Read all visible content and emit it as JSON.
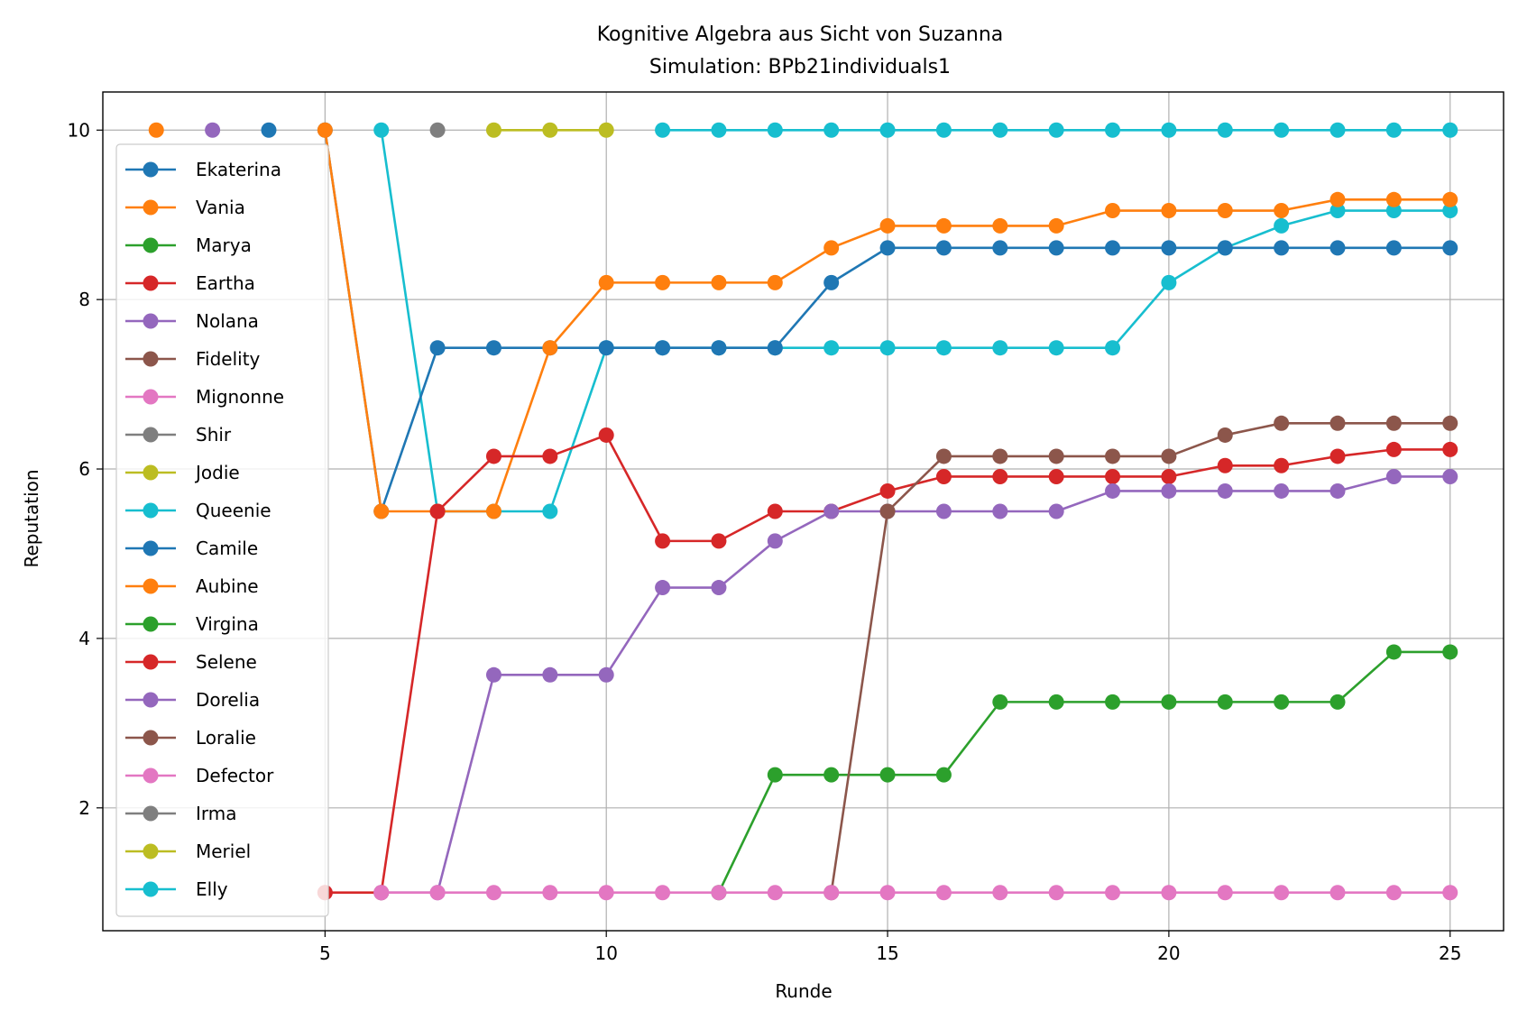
{
  "chart_data": {
    "type": "line",
    "title": "Kognitive Algebra aus Sicht von Suzanna",
    "subtitle": "Simulation: BPb21individuals1",
    "xlabel": "Runde",
    "ylabel": "Reputation",
    "xlim": [
      1.05,
      25.95
    ],
    "ylim": [
      0.55,
      10.45
    ],
    "xticks": [
      5,
      10,
      15,
      20,
      25
    ],
    "yticks": [
      2,
      4,
      6,
      8,
      10
    ],
    "grid": true,
    "legend_position": "left",
    "series": [
      {
        "name": "Ekaterina",
        "color": "#1f77b4",
        "x": [
          4
        ],
        "y": [
          10
        ]
      },
      {
        "name": "Vania",
        "color": "#ff7f0e",
        "x": [
          2
        ],
        "y": [
          10
        ]
      },
      {
        "name": "Marya",
        "color": "#2ca02c",
        "x": [],
        "y": []
      },
      {
        "name": "Eartha",
        "color": "#d62728",
        "x": [],
        "y": []
      },
      {
        "name": "Nolana",
        "color": "#9467bd",
        "x": [
          3
        ],
        "y": [
          10
        ]
      },
      {
        "name": "Fidelity",
        "color": "#8c564b",
        "x": [],
        "y": []
      },
      {
        "name": "Mignonne",
        "color": "#e377c2",
        "x": [
          5
        ],
        "y": [
          1
        ]
      },
      {
        "name": "Shir",
        "color": "#7f7f7f",
        "x": [
          7
        ],
        "y": [
          10
        ]
      },
      {
        "name": "Jodie",
        "color": "#bcbd22",
        "x": [
          8,
          9,
          10
        ],
        "y": [
          10,
          10,
          10
        ]
      },
      {
        "name": "Queenie",
        "color": "#17becf",
        "x": [
          6,
          7,
          8,
          9,
          10,
          11,
          12,
          13,
          14,
          15,
          16,
          17,
          18,
          19,
          20,
          21,
          22,
          23,
          24,
          25
        ],
        "y": [
          10,
          5.5,
          5.5,
          5.5,
          7.43,
          7.43,
          7.43,
          7.43,
          7.43,
          7.43,
          7.43,
          7.43,
          7.43,
          7.43,
          8.2,
          8.61,
          8.87,
          9.05,
          9.05,
          9.05
        ]
      },
      {
        "name": "Camile",
        "color": "#1f77b4",
        "x": [
          5,
          6,
          7,
          8,
          9,
          10,
          11,
          12,
          13,
          14,
          15,
          16,
          17,
          18,
          19,
          20,
          21,
          22,
          23,
          24,
          25
        ],
        "y": [
          10,
          5.5,
          7.43,
          7.43,
          7.43,
          7.43,
          7.43,
          7.43,
          7.43,
          8.2,
          8.61,
          8.61,
          8.61,
          8.61,
          8.61,
          8.61,
          8.61,
          8.61,
          8.61,
          8.61,
          8.61
        ]
      },
      {
        "name": "Aubine",
        "color": "#ff7f0e",
        "x": [
          5,
          6,
          7,
          8,
          9,
          10,
          11,
          12,
          13,
          14,
          15,
          16,
          17,
          18,
          19,
          20,
          21,
          22,
          23,
          24,
          25
        ],
        "y": [
          10,
          5.5,
          5.5,
          5.5,
          7.43,
          8.2,
          8.2,
          8.2,
          8.2,
          8.61,
          8.87,
          8.87,
          8.87,
          8.87,
          9.05,
          9.05,
          9.05,
          9.05,
          9.18,
          9.18,
          9.18
        ]
      },
      {
        "name": "Virgina",
        "color": "#2ca02c",
        "x": [
          12,
          13,
          14,
          15,
          16,
          17,
          18,
          19,
          20,
          21,
          22,
          23,
          24,
          25
        ],
        "y": [
          1,
          2.39,
          2.39,
          2.39,
          2.39,
          3.25,
          3.25,
          3.25,
          3.25,
          3.25,
          3.25,
          3.25,
          3.84,
          3.84
        ]
      },
      {
        "name": "Selene",
        "color": "#d62728",
        "x": [
          5,
          6,
          7,
          8,
          9,
          10,
          11,
          12,
          13,
          14,
          15,
          16,
          17,
          18,
          19,
          20,
          21,
          22,
          23,
          24,
          25
        ],
        "y": [
          1,
          1,
          5.5,
          6.15,
          6.15,
          6.4,
          5.15,
          5.15,
          5.5,
          5.5,
          5.74,
          5.91,
          5.91,
          5.91,
          5.91,
          5.91,
          6.04,
          6.04,
          6.15,
          6.23,
          6.23
        ]
      },
      {
        "name": "Dorelia",
        "color": "#9467bd",
        "x": [
          6,
          7,
          8,
          9,
          10,
          11,
          12,
          13,
          14,
          15,
          16,
          17,
          18,
          19,
          20,
          21,
          22,
          23,
          24,
          25
        ],
        "y": [
          1,
          1,
          3.57,
          3.57,
          3.57,
          4.6,
          4.6,
          5.15,
          5.5,
          5.5,
          5.5,
          5.5,
          5.5,
          5.74,
          5.74,
          5.74,
          5.74,
          5.74,
          5.91,
          5.91
        ]
      },
      {
        "name": "Loralie",
        "color": "#8c564b",
        "x": [
          14,
          15,
          16,
          17,
          18,
          19,
          20,
          21,
          22,
          23,
          24,
          25
        ],
        "y": [
          1,
          5.5,
          6.15,
          6.15,
          6.15,
          6.15,
          6.15,
          6.4,
          6.54,
          6.54,
          6.54,
          6.54
        ]
      },
      {
        "name": "Defector",
        "color": "#e377c2",
        "x": [
          6,
          7,
          8,
          9,
          10,
          11,
          12,
          13,
          14,
          15,
          16,
          17,
          18,
          19,
          20,
          21,
          22,
          23,
          24,
          25
        ],
        "y": [
          1,
          1,
          1,
          1,
          1,
          1,
          1,
          1,
          1,
          1,
          1,
          1,
          1,
          1,
          1,
          1,
          1,
          1,
          1,
          1
        ]
      },
      {
        "name": "Irma",
        "color": "#7f7f7f",
        "x": [],
        "y": []
      },
      {
        "name": "Meriel",
        "color": "#bcbd22",
        "x": [],
        "y": []
      },
      {
        "name": "Elly",
        "color": "#17becf",
        "x": [
          11,
          12,
          13,
          14,
          15,
          16,
          17,
          18,
          19,
          20,
          21,
          22,
          23,
          24,
          25
        ],
        "y": [
          10,
          10,
          10,
          10,
          10,
          10,
          10,
          10,
          10,
          10,
          10,
          10,
          10,
          10,
          10
        ]
      }
    ]
  }
}
